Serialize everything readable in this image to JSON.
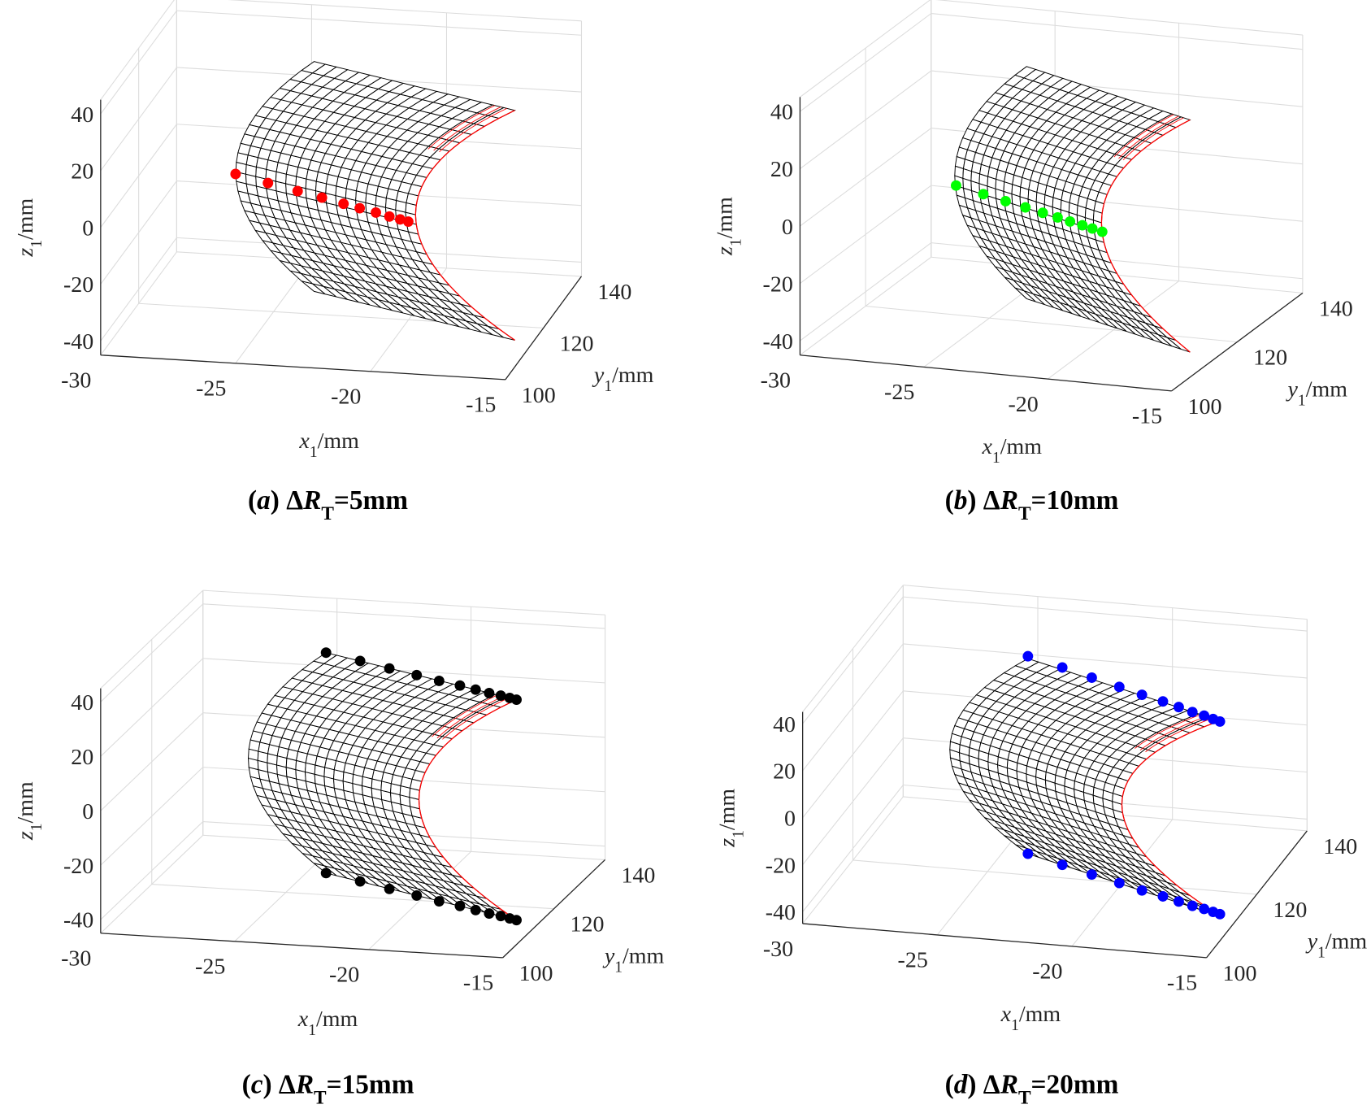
{
  "chart_data": [
    {
      "type": "surface3d",
      "caption": [
        {
          "text": "(",
          "style": "bold"
        },
        {
          "text": "a",
          "style": "bold-italic"
        },
        {
          "text": ") Δ",
          "style": "bold"
        },
        {
          "text": "R",
          "style": "bold-italic"
        },
        {
          "text": "T",
          "style": "bold-sub"
        },
        {
          "text": "=5mm",
          "style": "bold"
        }
      ],
      "x_label": [
        {
          "text": "x",
          "style": "italic"
        },
        {
          "text": "1",
          "style": "sub"
        },
        {
          "text": "/mm",
          "style": "normal"
        }
      ],
      "y_label": [
        {
          "text": "y",
          "style": "italic"
        },
        {
          "text": "1",
          "style": "sub"
        },
        {
          "text": "/mm",
          "style": "normal"
        }
      ],
      "z_label": [
        {
          "text": "z",
          "style": "italic"
        },
        {
          "text": "1",
          "style": "sub"
        },
        {
          "text": "/mm",
          "style": "normal"
        }
      ],
      "xlim": [
        -30,
        -15
      ],
      "ylim": [
        100,
        140
      ],
      "zlim": [
        -45,
        45
      ],
      "xticks": [
        -30,
        -25,
        -20,
        -15
      ],
      "yticks": [
        100,
        120,
        140
      ],
      "zticks": [
        -40,
        -20,
        0,
        20,
        40
      ],
      "grid": true,
      "points": {
        "color": "#ff0000",
        "x": [
          -25,
          -23.8,
          -22.7,
          -21.8,
          -21,
          -20.4,
          -19.8,
          -19.3,
          -18.9,
          -18.6
        ],
        "y": [
          100,
          100,
          100,
          100,
          100,
          100,
          100,
          100,
          100,
          100
        ],
        "z": [
          21.7,
          19.2,
          17,
          15.2,
          13.5,
          12.3,
          11.1,
          10,
          9.2,
          8.6
        ]
      }
    },
    {
      "type": "surface3d",
      "caption": [
        {
          "text": "(",
          "style": "bold"
        },
        {
          "text": "b",
          "style": "bold-italic"
        },
        {
          "text": ") Δ",
          "style": "bold"
        },
        {
          "text": "R",
          "style": "bold-italic"
        },
        {
          "text": "T",
          "style": "bold-sub"
        },
        {
          "text": "=10mm",
          "style": "bold"
        }
      ],
      "x_label": [
        {
          "text": "x",
          "style": "italic"
        },
        {
          "text": "1",
          "style": "sub"
        },
        {
          "text": "/mm",
          "style": "normal"
        }
      ],
      "y_label": [
        {
          "text": "y",
          "style": "italic"
        },
        {
          "text": "1",
          "style": "sub"
        },
        {
          "text": "/mm",
          "style": "normal"
        }
      ],
      "z_label": [
        {
          "text": "z",
          "style": "italic"
        },
        {
          "text": "1",
          "style": "sub"
        },
        {
          "text": "/mm",
          "style": "normal"
        }
      ],
      "xlim": [
        -30,
        -15
      ],
      "ylim": [
        100,
        140
      ],
      "zlim": [
        -45,
        45
      ],
      "xticks": [
        -30,
        -25,
        -20,
        -15
      ],
      "yticks": [
        100,
        120,
        140
      ],
      "zticks": [
        -40,
        -20,
        0,
        20,
        40
      ],
      "grid": true,
      "points": {
        "color": "#00ff00",
        "x": [
          -23.7,
          -22.6,
          -21.7,
          -20.9,
          -20.2,
          -19.6,
          -19.1,
          -18.6,
          -18.2,
          -17.8
        ],
        "y": [
          100,
          100,
          100,
          100,
          100,
          100,
          100,
          100,
          100,
          100
        ],
        "z": [
          19.4,
          17.3,
          15.6,
          14.1,
          12.8,
          11.7,
          10.7,
          9.8,
          9,
          8.2
        ]
      }
    },
    {
      "type": "surface3d",
      "caption": [
        {
          "text": "(",
          "style": "bold"
        },
        {
          "text": "c",
          "style": "bold-italic"
        },
        {
          "text": ") Δ",
          "style": "bold"
        },
        {
          "text": "R",
          "style": "bold-italic"
        },
        {
          "text": "T",
          "style": "bold-sub"
        },
        {
          "text": "=15mm",
          "style": "bold"
        }
      ],
      "x_label": [
        {
          "text": "x",
          "style": "italic"
        },
        {
          "text": "1",
          "style": "sub"
        },
        {
          "text": "/mm",
          "style": "normal"
        }
      ],
      "y_label": [
        {
          "text": "y",
          "style": "italic"
        },
        {
          "text": "1",
          "style": "sub"
        },
        {
          "text": "/mm",
          "style": "normal"
        }
      ],
      "z_label": [
        {
          "text": "z",
          "style": "italic"
        },
        {
          "text": "1",
          "style": "sub"
        },
        {
          "text": "/mm",
          "style": "normal"
        }
      ],
      "xlim": [
        -30,
        -15
      ],
      "ylim": [
        100,
        140
      ],
      "zlim": [
        -45,
        45
      ],
      "xticks": [
        -30,
        -25,
        -20,
        -15
      ],
      "yticks": [
        100,
        120,
        140
      ],
      "zticks": [
        -40,
        -20,
        0,
        20,
        40
      ],
      "grid": true,
      "points": {
        "color": "#000000",
        "x": [
          -23.5,
          -22,
          -20.7,
          -19.5,
          -18.5,
          -17.6,
          -16.9,
          -16.3,
          -15.8,
          -15.4,
          -15.1,
          -23.5,
          -22,
          -20.7,
          -19.5,
          -18.5,
          -17.6,
          -16.9,
          -16.3,
          -15.8,
          -15.4,
          -15.1
        ],
        "y": [
          120,
          117.6,
          115.4,
          113.5,
          111.8,
          110.5,
          109.3,
          108.3,
          107.6,
          106.9,
          106.4,
          120,
          117.6,
          115.4,
          113.5,
          111.8,
          110.5,
          109.3,
          108.3,
          107.6,
          106.9,
          106.4
        ],
        "z": [
          44,
          44,
          44,
          44,
          44,
          44,
          44,
          44,
          44,
          44,
          44,
          -37,
          -37,
          -37,
          -37,
          -37,
          -37,
          -37,
          -37,
          -37,
          -37,
          -37
        ]
      }
    },
    {
      "type": "surface3d",
      "caption": [
        {
          "text": "(",
          "style": "bold"
        },
        {
          "text": "d",
          "style": "bold-italic"
        },
        {
          "text": ") Δ",
          "style": "bold"
        },
        {
          "text": "R",
          "style": "bold-italic"
        },
        {
          "text": "T",
          "style": "bold-sub"
        },
        {
          "text": "=20mm",
          "style": "bold"
        }
      ],
      "x_label": [
        {
          "text": "x",
          "style": "italic"
        },
        {
          "text": "1",
          "style": "sub"
        },
        {
          "text": "/mm",
          "style": "normal"
        }
      ],
      "y_label": [
        {
          "text": "y",
          "style": "italic"
        },
        {
          "text": "1",
          "style": "sub"
        },
        {
          "text": "/mm",
          "style": "normal"
        }
      ],
      "z_label": [
        {
          "text": "z",
          "style": "italic"
        },
        {
          "text": "1",
          "style": "sub"
        },
        {
          "text": "/mm",
          "style": "normal"
        }
      ],
      "xlim": [
        -30,
        -15
      ],
      "ylim": [
        100,
        140
      ],
      "zlim": [
        -45,
        45
      ],
      "xticks": [
        -30,
        -25,
        -20,
        -15
      ],
      "yticks": [
        100,
        120,
        140
      ],
      "zticks": [
        -40,
        -20,
        0,
        20,
        40
      ],
      "grid": true,
      "points": {
        "color": "#0000ff",
        "x": [
          -23.5,
          -22,
          -20.7,
          -19.5,
          -18.5,
          -17.6,
          -16.9,
          -16.3,
          -15.8,
          -15.4,
          -15.1,
          -23.5,
          -22,
          -20.7,
          -19.5,
          -18.5,
          -17.6,
          -16.9,
          -16.3,
          -15.8,
          -15.4,
          -15.1
        ],
        "y": [
          120,
          117.6,
          115.4,
          113.5,
          111.8,
          110.5,
          109.3,
          108.3,
          107.6,
          106.9,
          106.4,
          120,
          117.6,
          115.4,
          113.5,
          111.8,
          110.5,
          109.3,
          108.3,
          107.6,
          106.9,
          106.4
        ],
        "z": [
          48,
          47.9,
          47.8,
          47.6,
          47.5,
          47.3,
          47.2,
          47,
          46.9,
          46.8,
          46.7,
          -36,
          -36,
          -35.9,
          -35.8,
          -35.7,
          -35.6,
          -35.5,
          -35.4,
          -35.3,
          -35.2,
          -35.2
        ]
      }
    }
  ]
}
